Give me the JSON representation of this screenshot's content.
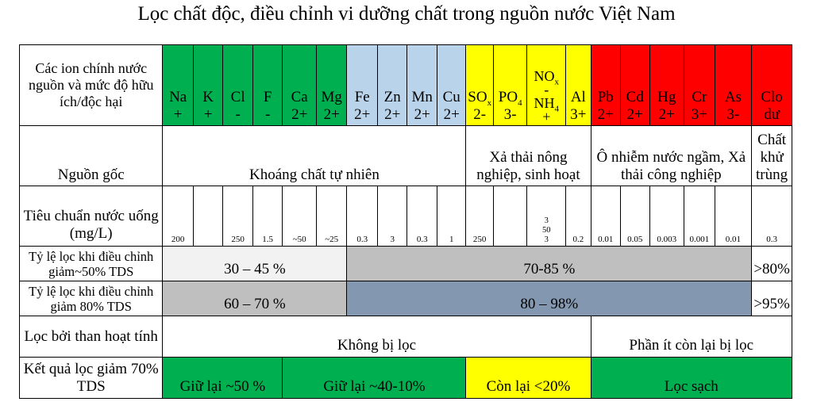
{
  "title": "Lọc chất độc, điều chỉnh vi dưỡng chất trong nguồn nước Việt Nam",
  "rows": {
    "ions_label": "Các ion chính nước nguồn và mức độ hữu ích/độc hại",
    "source_label": "Nguồn gốc",
    "standard_label": "Tiêu chuẩn nước uống (mg/L)",
    "rate50_label": "Tỷ lệ lọc khi điều chỉnh giảm~50% TDS",
    "rate80_label": "Tỷ lệ lọc khi điều chỉnh giảm 80% TDS",
    "carbon_label": "Lọc bởi than hoạt tính",
    "result_label": "Kết quả lọc giảm 70% TDS"
  },
  "ions": [
    {
      "top": "Na",
      "bottom": "+",
      "color": "#00b050"
    },
    {
      "top": "K",
      "bottom": "+",
      "color": "#00b050"
    },
    {
      "top": "Cl",
      "bottom": "-",
      "color": "#00b050"
    },
    {
      "top": "F",
      "bottom": "-",
      "color": "#00b050"
    },
    {
      "top": "Ca",
      "bottom": "2+",
      "color": "#00b050"
    },
    {
      "top": "Mg",
      "bottom": "2+",
      "color": "#00b050"
    },
    {
      "top": "Fe",
      "bottom": "2+",
      "color": "#b8d3ea"
    },
    {
      "top": "Zn",
      "bottom": "2+",
      "color": "#b8d3ea"
    },
    {
      "top": "Mn",
      "bottom": "2+",
      "color": "#b8d3ea"
    },
    {
      "top": "Cu",
      "bottom": "2+",
      "color": "#b8d3ea"
    },
    {
      "top": "SO",
      "sub": "x",
      "bottom": "2-",
      "color": "#ffff00"
    },
    {
      "top": "PO",
      "sub": "4",
      "bottom": "3-",
      "color": "#ffff00"
    },
    {
      "l1": "NO",
      "l1sub": "x",
      "l2": "-",
      "l3": "NH",
      "l3sub": "4",
      "l4": "+",
      "color": "#ffff00"
    },
    {
      "top": "Al",
      "bottom": "3+",
      "color": "#ffff00"
    },
    {
      "top": "Pb",
      "bottom": "2+",
      "color": "#ff0000"
    },
    {
      "top": "Cd",
      "bottom": "2+",
      "color": "#ff0000"
    },
    {
      "top": "Hg",
      "bottom": "2+",
      "color": "#ff0000"
    },
    {
      "top": "Cr",
      "bottom": "3+",
      "color": "#ff0000"
    },
    {
      "top": "As",
      "bottom": "3-",
      "color": "#ff0000"
    },
    {
      "top": "Clo",
      "bottom": "dư",
      "color": "#ff0000"
    }
  ],
  "source": {
    "natural": "Khoáng chất tự nhiên",
    "agri": "Xả thải nông nghiệp, sinh hoạt",
    "industrial": "Ô nhiễm nước ngầm, Xả thải công nghiệp",
    "disinfect": "Chất khử trùng"
  },
  "standards": [
    "200",
    "",
    "250",
    "1.5",
    "~50",
    "~25",
    "0.3",
    "3",
    "0.3",
    "1",
    "250",
    "",
    "3\n50\n3",
    "0.2",
    "0.01",
    "0.05",
    "0.003",
    "0.001",
    "0.01",
    "0.3"
  ],
  "rate50": {
    "a": "30 – 45 %",
    "b": "70-85 %",
    "c": ">80%"
  },
  "rate80": {
    "a": "60 – 70 %",
    "b": "80 – 98%",
    "c": ">95%"
  },
  "carbon": {
    "a": "Không bị lọc",
    "b": "Phần ít còn lại bị lọc"
  },
  "results": {
    "a": "Giữ lại ~50 %",
    "b": "Giữ lại ~40-10%",
    "c": "Còn lại <20%",
    "d": "Lọc sạch"
  }
}
